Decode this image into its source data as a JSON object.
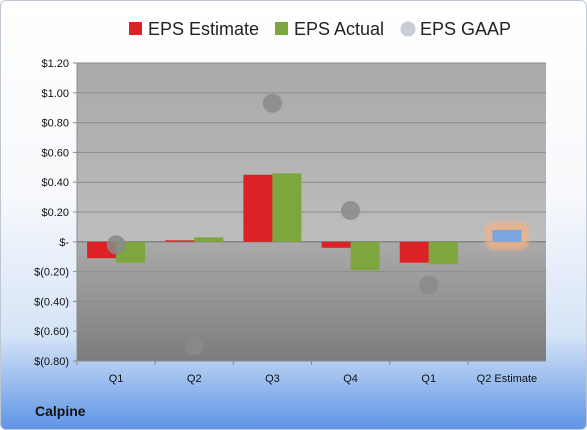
{
  "company": "Calpine",
  "chart_data": {
    "type": "bar",
    "categories": [
      "Q1",
      "Q2",
      "Q3",
      "Q4",
      "Q1",
      "Q2 Estimate"
    ],
    "series": [
      {
        "name": "EPS Estimate",
        "color": "#dc2127",
        "values": [
          -0.11,
          0.01,
          0.45,
          -0.04,
          -0.14,
          null
        ]
      },
      {
        "name": "EPS Actual",
        "color": "#7ea63f",
        "values": [
          -0.14,
          0.03,
          0.46,
          -0.19,
          -0.15,
          null
        ]
      },
      {
        "name": "EPS GAAP",
        "color": "#a9a9a9",
        "marker": "circle",
        "values": [
          -0.02,
          -0.7,
          0.93,
          0.21,
          -0.29,
          null
        ]
      }
    ],
    "highlight": {
      "category": "Q2 Estimate",
      "value": 0.08,
      "color": "#7aa6e0",
      "glow": "#f4b183"
    },
    "yticks": [
      1.2,
      1.0,
      0.8,
      0.6,
      0.4,
      0.2,
      0,
      -0.2,
      -0.4,
      -0.6,
      -0.8
    ],
    "ytick_labels": [
      "$1.20",
      "$1.00",
      "$0.80",
      "$0.60",
      "$0.40",
      "$0.20",
      "$-",
      "$(0.20)",
      "$(0.40)",
      "$(0.60)",
      "$(0.80)"
    ],
    "ylim": [
      -0.8,
      1.2
    ],
    "grid": true,
    "legend_position": "top"
  }
}
